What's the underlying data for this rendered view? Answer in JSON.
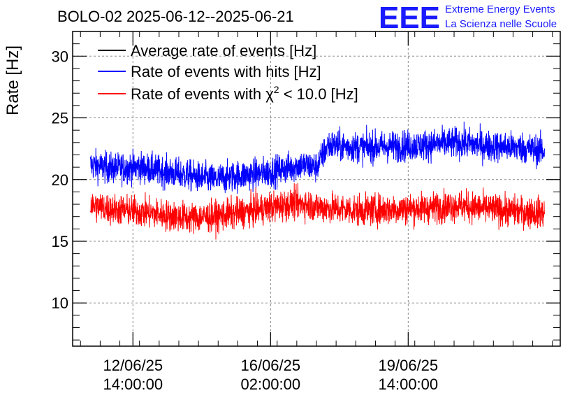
{
  "chart_data": {
    "type": "line",
    "title": "BOLO-02 2025-06-12--2025-06-21",
    "ylabel": "Rate [Hz]",
    "xlabel": "",
    "ylim": [
      6.5,
      32
    ],
    "yticks": [
      10,
      15,
      20,
      25,
      30
    ],
    "x_tick_labels": [
      {
        "date": "12/06/25",
        "time": "14:00:00",
        "t": 1.333
      },
      {
        "date": "16/06/25",
        "time": "02:00:00",
        "t": 4.833
      },
      {
        "date": "19/06/25",
        "time": "14:00:00",
        "t": 8.333
      }
    ],
    "xlim_days_from_2025_06_11": [
      -0.2,
      12.2
    ],
    "grid": true,
    "legend_position": "top-left",
    "series": [
      {
        "name": "Average rate of events [Hz]",
        "color": "#000000",
        "x": [],
        "y": []
      },
      {
        "name": "Rate of events with hits [Hz]",
        "color": "#0000ff",
        "x": [
          0.25,
          0.8,
          1.5,
          2.2,
          2.8,
          3.4,
          4.0,
          4.6,
          5.1,
          5.6,
          6.0,
          6.3,
          6.6,
          7.2,
          8.0,
          8.8,
          9.6,
          10.4,
          11.2,
          11.8
        ],
        "y": [
          21.2,
          20.9,
          21.0,
          20.6,
          20.3,
          20.0,
          20.3,
          20.5,
          20.8,
          21.2,
          21.0,
          22.8,
          22.7,
          22.6,
          22.7,
          22.8,
          23.0,
          22.7,
          22.6,
          22.3
        ]
      },
      {
        "name": "Rate of events with χ² < 10.0 [Hz]",
        "color": "#ff0000",
        "x": [
          0.25,
          0.8,
          1.5,
          2.2,
          2.8,
          3.4,
          4.0,
          4.6,
          5.1,
          5.6,
          6.0,
          6.3,
          6.6,
          7.2,
          8.0,
          8.8,
          9.6,
          10.4,
          11.2,
          11.8
        ],
        "y": [
          17.9,
          17.6,
          17.4,
          17.1,
          16.9,
          17.0,
          17.3,
          17.6,
          17.9,
          18.1,
          17.8,
          17.7,
          17.6,
          17.5,
          17.6,
          17.7,
          17.9,
          17.6,
          17.4,
          17.3
        ]
      }
    ]
  },
  "legend_items": [
    {
      "text": "Average rate of events [Hz]",
      "color": "#000000"
    },
    {
      "text": "Rate of events with hits [Hz]",
      "color": "#0000ff"
    }
  ],
  "legend_chi": {
    "pre": "Rate of events with ",
    "chi": "χ",
    "sup": "2",
    "post": " < 10.0 [Hz]",
    "color": "#ff0000"
  },
  "logo": {
    "mark": "EEE",
    "line1": "Extreme Energy Events",
    "line2": "La Scienza nelle Scuole"
  }
}
